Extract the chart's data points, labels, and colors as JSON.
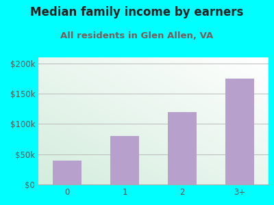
{
  "title": "Median family income by earners",
  "subtitle": "All residents in Glen Allen, VA",
  "categories": [
    "0",
    "1",
    "2",
    "3+"
  ],
  "values": [
    40000,
    80000,
    120000,
    175000
  ],
  "bar_color": "#b8a0cc",
  "ylim": [
    0,
    210000
  ],
  "yticks": [
    0,
    50000,
    100000,
    150000,
    200000
  ],
  "ytick_labels": [
    "$0",
    "$50k",
    "$100k",
    "$150k",
    "$200k"
  ],
  "background_outer": "#00ffff",
  "title_color": "#222222",
  "subtitle_color": "#7a5c5c",
  "title_fontsize": 12,
  "subtitle_fontsize": 9.5,
  "tick_color": "#555555",
  "tick_fontsize": 8.5,
  "grid_color": "#bbbbbb"
}
